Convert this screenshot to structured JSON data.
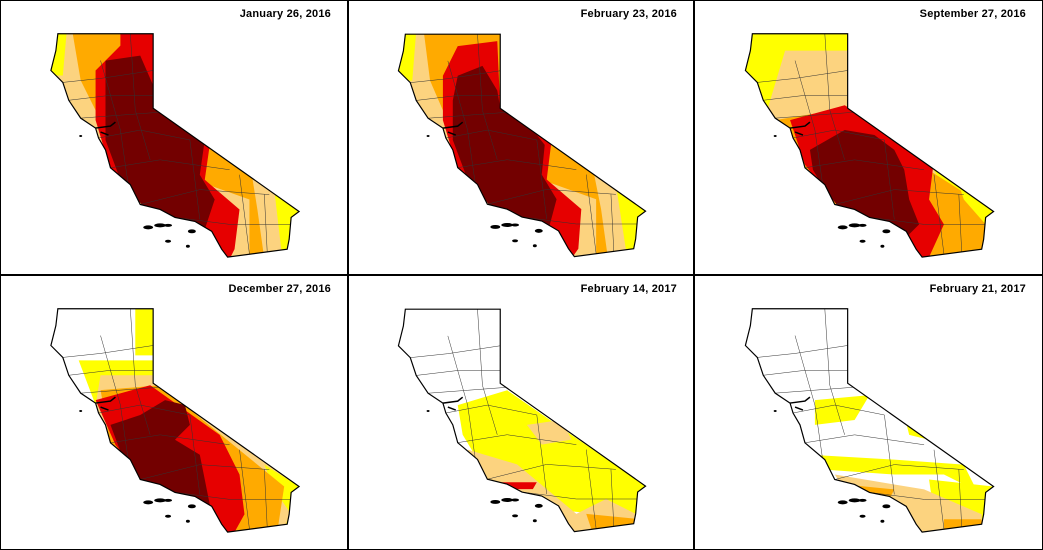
{
  "figure": {
    "panels": [
      {
        "date": "January 26, 2016"
      },
      {
        "date": "February 23, 2016"
      },
      {
        "date": "September 27, 2016"
      },
      {
        "date": "December 27, 2016"
      },
      {
        "date": "February 14, 2017"
      },
      {
        "date": "February 21, 2017"
      }
    ],
    "drought_colors": {
      "D0": "#FFFF00",
      "D1": "#FCD37F",
      "D2": "#FFAA00",
      "D3": "#E60000",
      "D4": "#730000"
    }
  }
}
